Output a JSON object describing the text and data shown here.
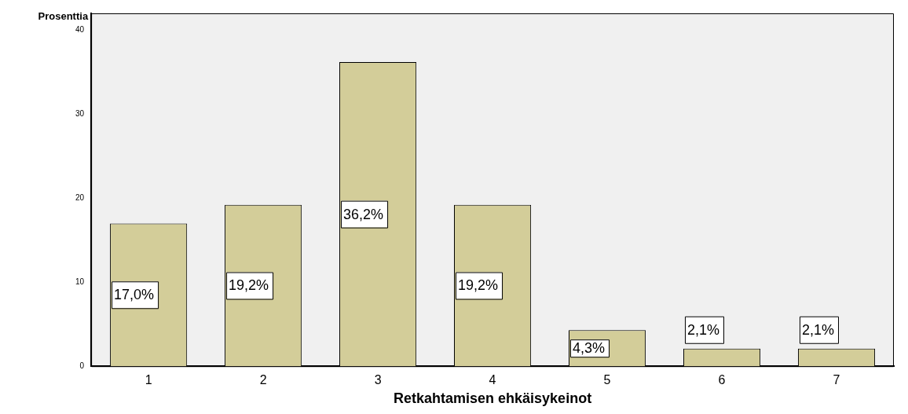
{
  "chart_data": {
    "type": "bar",
    "xlabel": "Retkahtamisen ehkäisykeinot",
    "ylabel": "Prosenttia",
    "categories": [
      "1",
      "2",
      "3",
      "4",
      "5",
      "6",
      "7"
    ],
    "values": [
      17.0,
      19.2,
      36.2,
      19.2,
      4.3,
      2.1,
      2.1
    ],
    "value_labels": [
      "17,0%",
      "19,2%",
      "36,2%",
      "19,2%",
      "4,3%",
      "2,1%",
      "2,1%"
    ],
    "color": "#d3cd99",
    "ylim": [
      0,
      42
    ],
    "yticks": [
      0,
      10,
      20,
      30,
      40
    ],
    "grid": false,
    "legend": false
  }
}
